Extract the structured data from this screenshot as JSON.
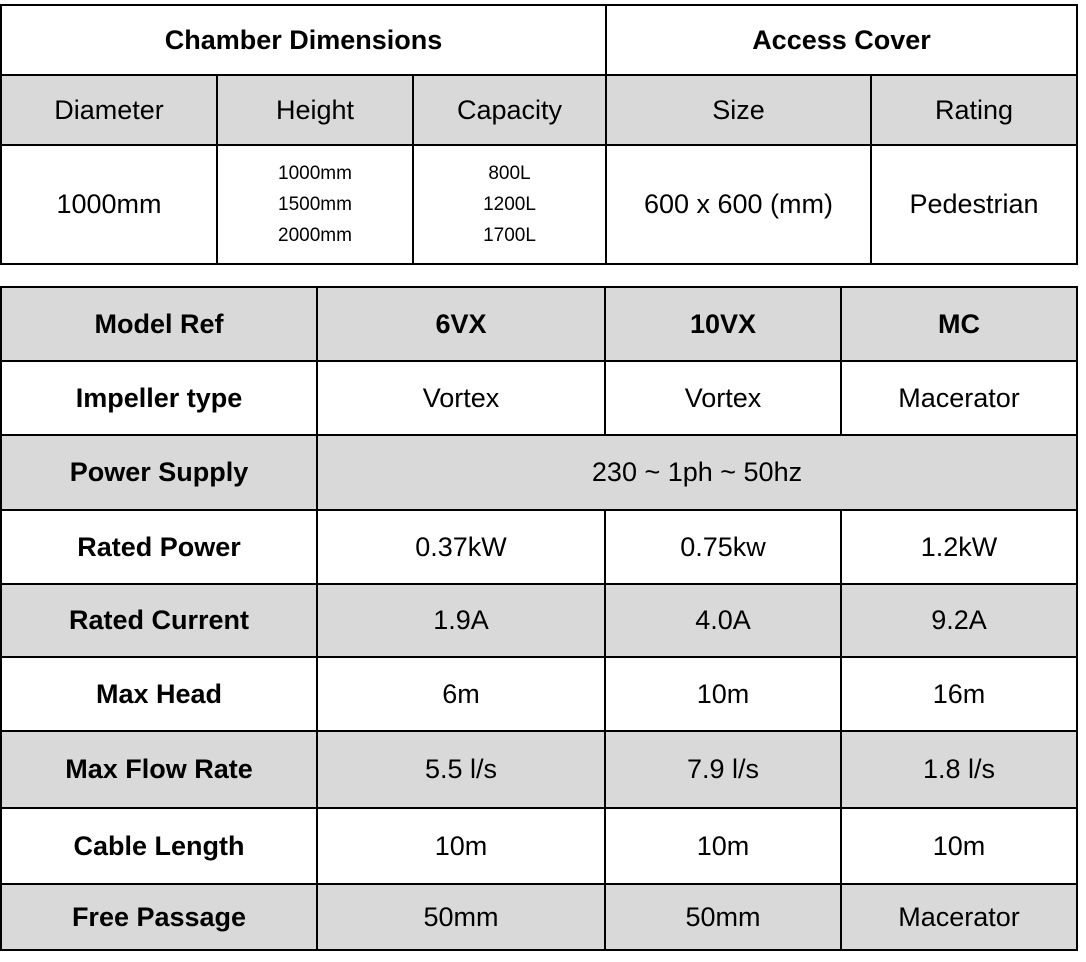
{
  "table1": {
    "groups": [
      "Chamber Dimensions",
      "Access Cover"
    ],
    "columns": [
      "Diameter",
      "Height",
      "Capacity",
      "Size",
      "Rating"
    ],
    "row": [
      "1000mm",
      [
        "1000mm",
        "1500mm",
        "2000mm"
      ],
      [
        "800L",
        "1200L",
        "1700L"
      ],
      "600 x 600 (mm)",
      "Pedestrian"
    ]
  },
  "table2": {
    "header": [
      "Model Ref",
      "6VX",
      "10VX",
      "MC"
    ],
    "rows": [
      [
        "Impeller type",
        "Vortex",
        "Vortex",
        "Macerator"
      ],
      [
        "Power Supply",
        "230 ~ 1ph ~ 50hz"
      ],
      [
        "Rated Power",
        "0.37kW",
        "0.75kw",
        "1.2kW"
      ],
      [
        "Rated Current",
        "1.9A",
        "4.0A",
        "9.2A"
      ],
      [
        "Max Head",
        "6m",
        "10m",
        "16m"
      ],
      [
        "Max Flow Rate",
        "5.5 l/s",
        "7.9 l/s",
        "1.8 l/s"
      ],
      [
        "Cable Length",
        "10m",
        "10m",
        "10m"
      ],
      [
        "Free Passage",
        "50mm",
        "50mm",
        "Macerator"
      ]
    ]
  }
}
